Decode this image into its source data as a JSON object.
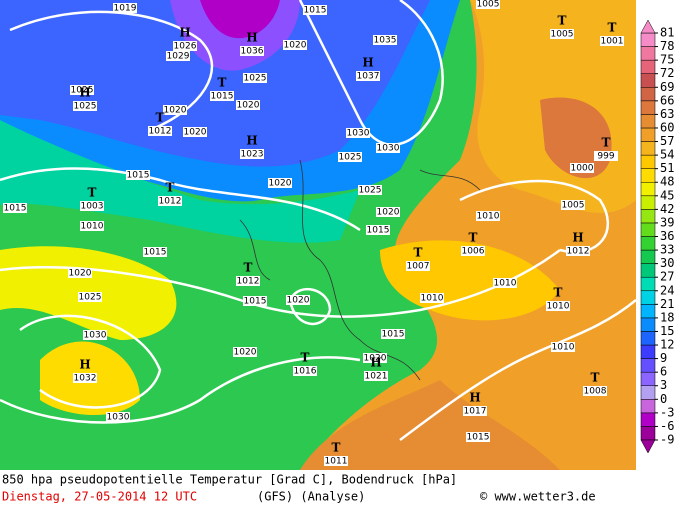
{
  "pressure_labels": [
    1019,
    1015,
    1020,
    1035,
    1029,
    1025,
    1025,
    1020,
    1020,
    1020,
    1030,
    1030,
    1025,
    1020,
    1025,
    1015,
    1015,
    1010,
    1020,
    1015,
    1015,
    1020,
    1025,
    1015,
    1020,
    1010,
    1030,
    1015,
    1020,
    1020,
    1030,
    1015,
    1010,
    1010,
    1010,
    1005,
    1000,
    1005
  ],
  "centers": [
    {
      "symbol": "H",
      "value": 1026
    },
    {
      "symbol": "H",
      "value": 1036
    },
    {
      "symbol": "H",
      "value": 1037
    },
    {
      "symbol": "T",
      "value": 1015
    },
    {
      "symbol": "T",
      "value": 1012
    },
    {
      "symbol": "H",
      "value": 1023
    },
    {
      "symbol": "H",
      "value": 1025
    },
    {
      "symbol": "T",
      "value": 1003
    },
    {
      "symbol": "T",
      "value": 1012
    },
    {
      "symbol": "T",
      "value": 1012
    },
    {
      "symbol": "T",
      "value": 1016
    },
    {
      "symbol": "H",
      "value": 1021
    },
    {
      "symbol": "H",
      "value": 1032
    },
    {
      "symbol": "H",
      "value": 1017
    },
    {
      "symbol": "T",
      "value": 1011
    },
    {
      "symbol": "T",
      "value": 1007
    },
    {
      "symbol": "T",
      "value": 1006
    },
    {
      "symbol": "H",
      "value": 1012
    },
    {
      "symbol": "T",
      "value": 1010
    },
    {
      "symbol": "T",
      "value": 1008
    },
    {
      "symbol": "T",
      "value": 999
    },
    {
      "symbol": "T",
      "value": 1005
    },
    {
      "symbol": "T",
      "value": 1001
    }
  ],
  "colorbar": {
    "ticks": [
      -9,
      -6,
      -3,
      0,
      3,
      6,
      9,
      12,
      15,
      18,
      21,
      24,
      27,
      30,
      33,
      36,
      39,
      42,
      45,
      48,
      51,
      54,
      57,
      60,
      63,
      66,
      69,
      72,
      75,
      78,
      81
    ],
    "colors": [
      "#9b009b",
      "#b000c8",
      "#c864dc",
      "#b4a0f0",
      "#8c64ff",
      "#6450ff",
      "#3c3cff",
      "#1e64ff",
      "#0a8cff",
      "#00b4ff",
      "#00d2e6",
      "#00dcb4",
      "#00c878",
      "#14c850",
      "#32d232",
      "#64dc1e",
      "#96e614",
      "#c8f000",
      "#f0f000",
      "#ffdc00",
      "#ffc800",
      "#f5b41e",
      "#f0a028",
      "#e68c32",
      "#dc783c",
      "#d26446",
      "#c85050",
      "#e6647a",
      "#f078a0",
      "#f58cc8"
    ]
  },
  "footer": {
    "title": "850 hpa pseudopotentielle Temperatur [Grad C], Bodendruck [hPa]",
    "date": "Dienstag, 27-05-2014  12 UTC",
    "model": "(GFS)  (Analyse)",
    "source": "© www.wetter3.de"
  }
}
